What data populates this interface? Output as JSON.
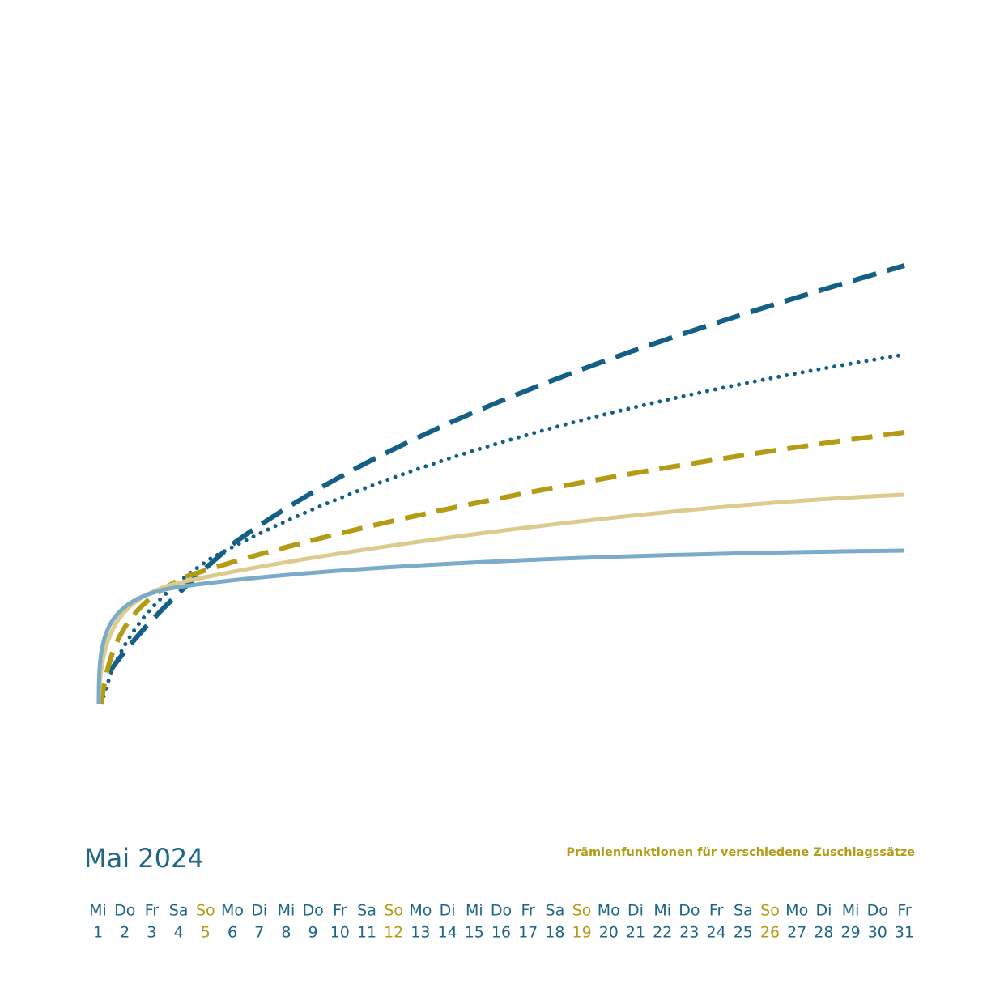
{
  "header": {
    "title": "Mai 2024",
    "subtitle": "Prämienfunktionen für verschiedene Zuschlagssätze"
  },
  "calendar": {
    "days": [
      {
        "weekday": "Mi",
        "day": 1,
        "color": "#1d6686"
      },
      {
        "weekday": "Do",
        "day": 2,
        "color": "#1d6686"
      },
      {
        "weekday": "Fr",
        "day": 3,
        "color": "#1d6686"
      },
      {
        "weekday": "Sa",
        "day": 4,
        "color": "#1d6686"
      },
      {
        "weekday": "So",
        "day": 5,
        "color": "#b39b14"
      },
      {
        "weekday": "Mo",
        "day": 6,
        "color": "#1d6686"
      },
      {
        "weekday": "Di",
        "day": 7,
        "color": "#1d6686"
      },
      {
        "weekday": "Mi",
        "day": 8,
        "color": "#1d6686"
      },
      {
        "weekday": "Do",
        "day": 9,
        "color": "#1d6686"
      },
      {
        "weekday": "Fr",
        "day": 10,
        "color": "#1d6686"
      },
      {
        "weekday": "Sa",
        "day": 11,
        "color": "#1d6686"
      },
      {
        "weekday": "So",
        "day": 12,
        "color": "#b39b14"
      },
      {
        "weekday": "Mo",
        "day": 13,
        "color": "#1d6686"
      },
      {
        "weekday": "Di",
        "day": 14,
        "color": "#1d6686"
      },
      {
        "weekday": "Mi",
        "day": 15,
        "color": "#1d6686"
      },
      {
        "weekday": "Do",
        "day": 16,
        "color": "#1d6686"
      },
      {
        "weekday": "Fr",
        "day": 17,
        "color": "#1d6686"
      },
      {
        "weekday": "Sa",
        "day": 18,
        "color": "#1d6686"
      },
      {
        "weekday": "So",
        "day": 19,
        "color": "#b39b14"
      },
      {
        "weekday": "Mo",
        "day": 20,
        "color": "#1d6686"
      },
      {
        "weekday": "Di",
        "day": 21,
        "color": "#1d6686"
      },
      {
        "weekday": "Mi",
        "day": 22,
        "color": "#1d6686"
      },
      {
        "weekday": "Do",
        "day": 23,
        "color": "#1d6686"
      },
      {
        "weekday": "Fr",
        "day": 24,
        "color": "#1d6686"
      },
      {
        "weekday": "Sa",
        "day": 25,
        "color": "#1d6686"
      },
      {
        "weekday": "So",
        "day": 26,
        "color": "#b39b14"
      },
      {
        "weekday": "Mo",
        "day": 27,
        "color": "#1d6686"
      },
      {
        "weekday": "Di",
        "day": 28,
        "color": "#1d6686"
      },
      {
        "weekday": "Mi",
        "day": 29,
        "color": "#1d6686"
      },
      {
        "weekday": "Do",
        "day": 30,
        "color": "#1d6686"
      },
      {
        "weekday": "Fr",
        "day": 31,
        "color": "#1d6686"
      }
    ]
  }
}
